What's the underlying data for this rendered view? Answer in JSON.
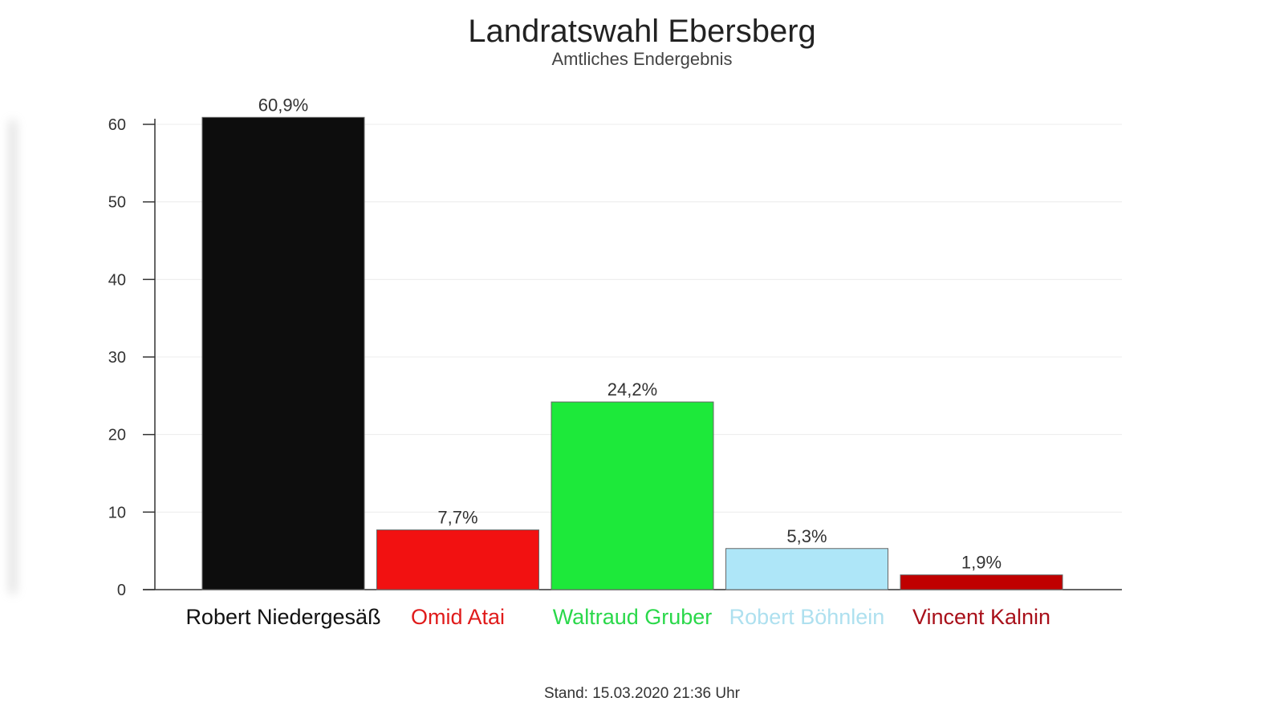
{
  "chart_data": {
    "type": "bar",
    "title": "Landratswahl Ebersberg",
    "subtitle": "Amtliches Endergebnis",
    "categories": [
      "Robert Niedergesäß",
      "Omid Atai",
      "Waltraud Gruber",
      "Robert Böhnlein",
      "Vincent Kalnin"
    ],
    "values": [
      60.9,
      7.7,
      24.2,
      5.3,
      1.9
    ],
    "data_labels": [
      "60,9%",
      "7,7%",
      "24,2%",
      "5,3%",
      "1,9%"
    ],
    "colors": [
      "#0d0d0d",
      "#f21111",
      "#1de93a",
      "#aee6f8",
      "#c00000"
    ],
    "label_colors": [
      "#111111",
      "#e01b1b",
      "#2ad84a",
      "#aee0ef",
      "#a8101a"
    ],
    "yticks": [
      0,
      10,
      20,
      30,
      40,
      50,
      60
    ],
    "ylim": [
      0,
      60
    ],
    "grid": true,
    "footer": "Stand: 15.03.2020 21:36 Uhr"
  }
}
